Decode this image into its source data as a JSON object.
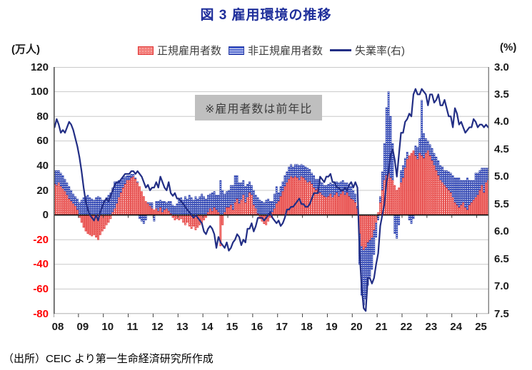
{
  "title": "図 3  雇用環境の推移",
  "legend": {
    "regular": "正規雇用者数",
    "non_regular": "非正規雇用者数",
    "unemployment": "失業率(右)"
  },
  "units": {
    "left": "(万人)",
    "right": "(%)"
  },
  "note": {
    "text": "※雇用者数は前年比"
  },
  "source": {
    "text": "（出所）CEIC より第一生命経済研究所作成"
  },
  "colors": {
    "title": "#1f2f9b",
    "line": "#222e85",
    "bar_red_fill": "#f4807c",
    "bar_red_border": "#e03434",
    "bar_blue_fill": "#3f58cb",
    "bar_blue_border": "#2c3fa4",
    "gridline": "#c9c9c9",
    "zero_axis": "#000000",
    "negative_tick": "#ff0000",
    "note_bg": "#bfbfbf"
  },
  "chart_data": {
    "type": "combo(stacked-bar + line)",
    "title": "図 3  雇用環境の推移",
    "note": "※雇用者数は前年比",
    "x_unit": "year (monthly data)",
    "left_axis": {
      "label": "(万人)",
      "min": -80,
      "max": 120,
      "step": 20
    },
    "right_axis": {
      "label": "(%)",
      "min": 3.0,
      "max": 7.5,
      "step": 0.5,
      "inverted": true
    },
    "legend_position": "top",
    "grid": "horizontal",
    "x_tick_labels": [
      "08",
      "09",
      "10",
      "11",
      "12",
      "13",
      "14",
      "15",
      "16",
      "17",
      "18",
      "19",
      "20",
      "21",
      "22",
      "23",
      "24",
      "25"
    ],
    "y_left_tick_labels": [
      "120",
      "100",
      "80",
      "60",
      "40",
      "20",
      "0",
      "-20",
      "-40",
      "-60",
      "-80"
    ],
    "y_right_tick_labels": [
      "3.0",
      "3.5",
      "4.0",
      "4.5",
      "5.0",
      "5.5",
      "6.0",
      "6.5",
      "7.0",
      "7.5"
    ],
    "years": [
      2008,
      2009,
      2010,
      2011,
      2012,
      2013,
      2014,
      2015,
      2016,
      2017,
      2018,
      2019,
      2020,
      2021,
      2022,
      2023,
      2024,
      2025
    ],
    "series": {
      "regular_yoy_10k": [
        [
          25,
          24,
          26,
          23,
          21,
          19,
          16,
          13,
          11,
          9,
          7,
          4
        ],
        [
          -2,
          -6,
          -10,
          -13,
          -15,
          -16,
          -17,
          -16,
          -18,
          -20,
          -16,
          -13
        ],
        [
          -11,
          -8,
          -6,
          -3,
          2,
          5,
          9,
          14,
          18,
          22,
          25,
          28
        ],
        [
          28,
          30,
          31,
          29,
          26,
          23,
          19,
          15,
          11,
          9,
          7,
          5
        ],
        [
          4,
          5,
          3,
          6,
          2,
          4,
          5,
          3,
          1,
          -2,
          -4,
          -3
        ],
        [
          -4,
          -3,
          -6,
          -8,
          -6,
          -9,
          -11,
          -9,
          -12,
          -10,
          -8,
          -6
        ],
        [
          -4,
          -2,
          2,
          5,
          3,
          6,
          4,
          2,
          -25,
          -8,
          2,
          6
        ],
        [
          6,
          8,
          4,
          10,
          13,
          9,
          12,
          16,
          10,
          14,
          18,
          16
        ],
        [
          8,
          5,
          1,
          -3,
          -5,
          -7,
          -8,
          -5,
          -2,
          2,
          5,
          9
        ],
        [
          11,
          15,
          19,
          23,
          26,
          29,
          31,
          30,
          31,
          30,
          28,
          31
        ],
        [
          30,
          28,
          26,
          27,
          25,
          22,
          20,
          21,
          18,
          16,
          15,
          14
        ],
        [
          15,
          17,
          14,
          16,
          18,
          15,
          17,
          19,
          16,
          18,
          15,
          13
        ],
        [
          12,
          10,
          5,
          -15,
          -25,
          -28,
          -26,
          -22,
          -20,
          -18,
          -12,
          -6
        ],
        [
          2,
          10,
          20,
          28,
          32,
          34,
          30,
          28,
          24,
          20,
          22,
          26
        ],
        [
          30,
          38,
          45,
          48,
          50,
          52,
          48,
          45,
          50,
          48,
          46,
          50
        ],
        [
          52,
          48,
          44,
          40,
          36,
          32,
          28,
          26,
          24,
          22,
          20,
          18
        ],
        [
          14,
          10,
          8,
          6,
          8,
          10,
          6,
          4,
          8,
          10,
          12,
          14
        ],
        [
          16,
          20,
          24,
          18,
          26,
          28
        ]
      ],
      "non_regular_yoy_10k": [
        [
          11,
          12,
          10,
          11,
          11,
          10,
          10,
          10,
          9,
          8,
          8,
          9
        ],
        [
          10,
          12,
          14,
          15,
          16,
          14,
          13,
          12,
          14,
          15,
          14,
          12
        ],
        [
          12,
          14,
          16,
          18,
          20,
          22,
          18,
          14,
          10,
          8,
          6,
          4
        ],
        [
          4,
          3,
          2,
          1,
          1,
          -3,
          -5,
          -7,
          -4,
          1,
          3,
          5
        ],
        [
          -5,
          6,
          8,
          6,
          9,
          7,
          5,
          8,
          10,
          8,
          7,
          9
        ],
        [
          13,
          14,
          12,
          15,
          13,
          16,
          14,
          12,
          15,
          13,
          15,
          17
        ],
        [
          15,
          13,
          14,
          12,
          15,
          13,
          12,
          14,
          28,
          20,
          15,
          13
        ],
        [
          14,
          16,
          20,
          22,
          19,
          17,
          14,
          12,
          13,
          11,
          9,
          8
        ],
        [
          12,
          11,
          13,
          12,
          11,
          10,
          12,
          13,
          11,
          9,
          12,
          14
        ],
        [
          7,
          8,
          8,
          9,
          9,
          10,
          10,
          9,
          10,
          11,
          12,
          10
        ],
        [
          10,
          11,
          12,
          10,
          9,
          10,
          9,
          8,
          9,
          10,
          9,
          10
        ],
        [
          10,
          9,
          11,
          10,
          9,
          11,
          10,
          9,
          10,
          8,
          9,
          10
        ],
        [
          8,
          7,
          2,
          -25,
          -40,
          -45,
          -42,
          -35,
          -30,
          -26,
          -20,
          -12
        ],
        [
          -4,
          5,
          15,
          30,
          55,
          66,
          50,
          30,
          -15,
          -19,
          -8,
          10
        ],
        [
          10,
          8,
          6,
          -4,
          -7,
          -3,
          8,
          10,
          12,
          45,
          20,
          12
        ],
        [
          8,
          9,
          10,
          10,
          11,
          12,
          12,
          13,
          12,
          14,
          15,
          16
        ],
        [
          18,
          20,
          22,
          24,
          20,
          18,
          22,
          26,
          20,
          18,
          16,
          20
        ],
        [
          18,
          16,
          14,
          20,
          12,
          10
        ]
      ],
      "unemployment_rate_pct": [
        [
          4.1,
          3.95,
          4.05,
          4.2,
          4.15,
          4.2,
          4.1,
          4.0,
          4.05,
          4.15,
          4.3,
          4.45
        ],
        [
          4.65,
          4.9,
          5.2,
          5.45,
          5.6,
          5.7,
          5.75,
          5.8,
          5.7,
          5.8,
          5.65,
          5.55
        ],
        [
          5.45,
          5.4,
          5.45,
          5.35,
          5.25,
          5.15,
          5.1,
          5.1,
          5.05,
          5.0,
          4.95,
          4.95
        ],
        [
          4.95,
          4.9,
          4.9,
          4.95,
          4.9,
          4.95,
          5.0,
          5.1,
          5.2,
          5.15,
          5.25,
          5.2
        ],
        [
          5.2,
          5.1,
          5.2,
          5.0,
          5.1,
          5.2,
          5.25,
          5.1,
          5.3,
          5.35,
          5.3,
          5.4
        ],
        [
          5.4,
          5.45,
          5.5,
          5.55,
          5.6,
          5.65,
          5.7,
          5.75,
          5.7,
          5.75,
          5.8,
          5.85
        ],
        [
          6.0,
          6.05,
          5.95,
          5.9,
          5.95,
          6.05,
          6.3,
          6.1,
          6.2,
          6.25,
          6.3,
          6.2
        ],
        [
          6.35,
          6.3,
          6.2,
          6.15,
          6.05,
          6.1,
          6.25,
          6.15,
          6.2,
          5.95,
          5.95,
          5.85
        ],
        [
          6.0,
          5.9,
          5.75,
          5.75,
          5.75,
          5.8,
          5.75,
          5.7,
          5.65,
          5.75,
          5.8,
          5.85
        ],
        [
          5.8,
          5.9,
          5.85,
          5.75,
          5.6,
          5.6,
          5.55,
          5.55,
          5.5,
          5.45,
          5.4,
          5.5
        ],
        [
          5.5,
          5.55,
          5.55,
          5.5,
          5.4,
          5.3,
          5.3,
          5.3,
          5.0,
          5.05,
          5.1,
          5.0
        ],
        [
          5.0,
          4.95,
          5.1,
          5.1,
          5.2,
          5.2,
          5.25,
          5.25,
          5.2,
          5.25,
          5.15,
          5.1
        ],
        [
          5.2,
          5.1,
          5.2,
          6.35,
          7.0,
          7.4,
          7.45,
          6.85,
          6.85,
          6.95,
          6.85,
          6.6
        ],
        [
          6.4,
          5.9,
          5.7,
          5.5,
          5.1,
          4.9,
          4.6,
          4.5,
          4.7,
          5.0,
          4.6,
          4.2
        ],
        [
          4.2,
          4.0,
          3.95,
          3.85,
          3.9,
          3.5,
          3.4,
          3.5,
          3.5,
          3.4,
          3.45,
          3.5
        ],
        [
          3.7,
          3.5,
          3.5,
          3.65,
          3.6,
          3.5,
          3.7,
          3.7,
          3.6,
          3.75,
          3.9,
          3.9
        ],
        [
          4.1,
          3.75,
          3.85,
          4.05,
          4.0,
          4.1,
          4.2,
          4.15,
          4.1,
          4.1,
          3.95,
          4.0
        ],
        [
          4.1,
          4.05,
          4.05,
          4.1,
          4.05,
          4.1
        ]
      ]
    }
  }
}
